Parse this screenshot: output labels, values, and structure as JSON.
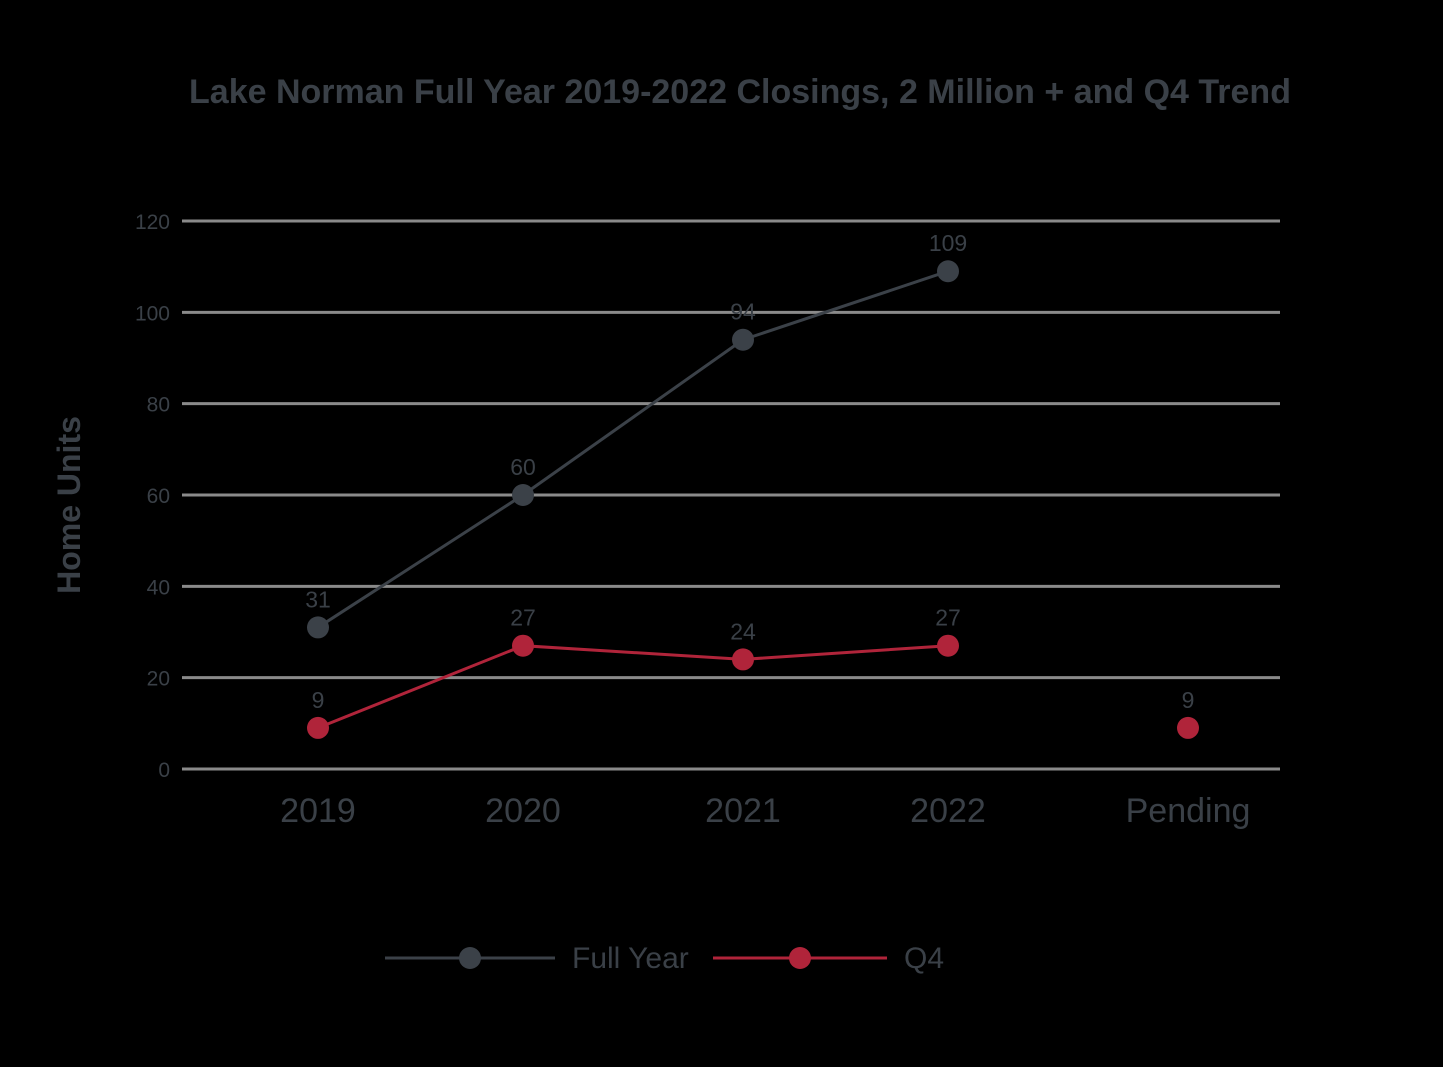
{
  "chart_data": {
    "type": "line",
    "title": "Lake Norman Full Year 2019-2022 Closings, 2 Million + and Q4 Trend",
    "ylabel": "Home Units",
    "xlabel": "",
    "categories": [
      "2019",
      "2020",
      "2021",
      "2022",
      "Pending"
    ],
    "ylim": [
      0,
      120
    ],
    "yticks": [
      0,
      20,
      40,
      60,
      80,
      100,
      120
    ],
    "grid": true,
    "legend_position": "bottom",
    "series": [
      {
        "name": "Full Year",
        "color": "#3b4148",
        "values": [
          31,
          60,
          94,
          109,
          null
        ],
        "labels": [
          "31",
          "60",
          "94",
          "109",
          ""
        ]
      },
      {
        "name": "Q4",
        "color": "#b0243a",
        "values": [
          9,
          27,
          24,
          27,
          9
        ],
        "labels": [
          "9",
          "27",
          "24",
          "27",
          "9"
        ],
        "connected_until_index": 3
      }
    ]
  }
}
